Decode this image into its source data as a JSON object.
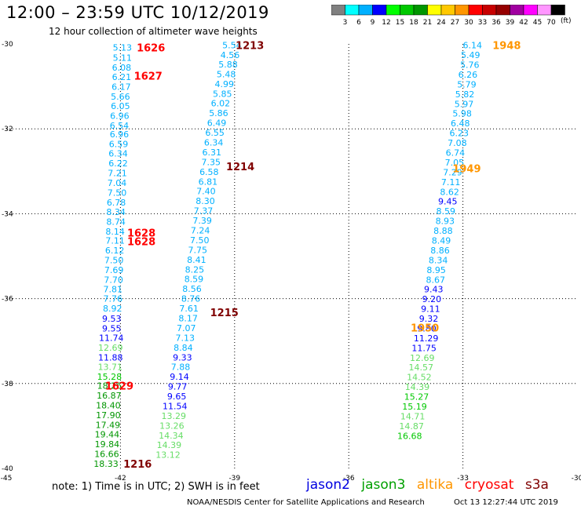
{
  "header": {
    "title": "12:00 – 23:59 UTC 10/12/2019",
    "subtitle": "12 hour collection of altimeter wave heights"
  },
  "legend": {
    "unit": "(ft)",
    "colors": [
      "#808080",
      "#00ffff",
      "#00b0ff",
      "#0000ff",
      "#00ff00",
      "#00c800",
      "#009600",
      "#ffff00",
      "#ffc800",
      "#ff9600",
      "#ff0000",
      "#c80000",
      "#960000",
      "#a000a0",
      "#ff00ff",
      "#ff96ff",
      "#000000"
    ],
    "labels": [
      "3",
      "6",
      "9",
      "12",
      "15",
      "18",
      "21",
      "24",
      "27",
      "30",
      "33",
      "36",
      "39",
      "42",
      "45",
      "70"
    ]
  },
  "note": "note: 1) Time is in UTC; 2) SWH is in feet",
  "satellites": [
    {
      "name": "jason2",
      "color": "#0000e0"
    },
    {
      "name": "jason3",
      "color": "#00a000"
    },
    {
      "name": "altika",
      "color": "#ff9600"
    },
    {
      "name": "cryosat",
      "color": "#ff0000"
    },
    {
      "name": "s3a",
      "color": "#800000"
    }
  ],
  "footer_left": "NOAA/NESDIS Center for Satellite Applications and Research",
  "footer_right": "Oct 13 12:27:44 UTC 2019",
  "chart_data": {
    "type": "scatter",
    "xlim": [
      -45,
      -30
    ],
    "ylim": [
      -40,
      -30
    ],
    "x_ticks": [
      "-45",
      "-42",
      "-39",
      "-36",
      "-33",
      "-30"
    ],
    "y_ticks": [
      "-30",
      "-32",
      "-34",
      "-36",
      "-38",
      "-40"
    ],
    "grid": "dotted",
    "series": [
      {
        "name": "cryosat",
        "color": "#ff0000",
        "time_labels": [
          {
            "text": "1626",
            "x": -41.2,
            "y": -30.08
          },
          {
            "text": "1627",
            "x": -41.27,
            "y": -30.75
          },
          {
            "text": "1628",
            "x": -41.45,
            "y": -34.45
          },
          {
            "text": "1628",
            "x": -41.45,
            "y": -34.65
          },
          {
            "text": "1629",
            "x": -42.03,
            "y": -38.05
          }
        ],
        "points": [
          {
            "x": -41.95,
            "y": -30.08,
            "v": "5.13",
            "c": "#00b0ff"
          },
          {
            "x": -41.95,
            "y": -30.32,
            "v": "5.11",
            "c": "#00b0ff"
          },
          {
            "x": -41.97,
            "y": -30.55,
            "v": "6.08",
            "c": "#00b0ff"
          },
          {
            "x": -41.97,
            "y": -30.78,
            "v": "6.21",
            "c": "#00b0ff"
          },
          {
            "x": -41.98,
            "y": -31.01,
            "v": "6.17",
            "c": "#00b0ff"
          },
          {
            "x": -42.0,
            "y": -31.24,
            "v": "5.66",
            "c": "#00b0ff"
          },
          {
            "x": -42.0,
            "y": -31.46,
            "v": "6.05",
            "c": "#00b0ff"
          },
          {
            "x": -42.02,
            "y": -31.69,
            "v": "6.96",
            "c": "#00b0ff"
          },
          {
            "x": -42.03,
            "y": -31.92,
            "v": "6.54",
            "c": "#00b0ff"
          },
          {
            "x": -42.03,
            "y": -32.13,
            "v": "6.96",
            "c": "#00b0ff"
          },
          {
            "x": -42.05,
            "y": -32.36,
            "v": "6.59",
            "c": "#00b0ff"
          },
          {
            "x": -42.06,
            "y": -32.58,
            "v": "6.34",
            "c": "#00b0ff"
          },
          {
            "x": -42.06,
            "y": -32.81,
            "v": "6.22",
            "c": "#00b0ff"
          },
          {
            "x": -42.08,
            "y": -33.04,
            "v": "7.21",
            "c": "#00b0ff"
          },
          {
            "x": -42.09,
            "y": -33.27,
            "v": "7.04",
            "c": "#00b0ff"
          },
          {
            "x": -42.09,
            "y": -33.5,
            "v": "7.50",
            "c": "#00b0ff"
          },
          {
            "x": -42.11,
            "y": -33.73,
            "v": "6.78",
            "c": "#00b0ff"
          },
          {
            "x": -42.12,
            "y": -33.96,
            "v": "8.34",
            "c": "#00b0ff"
          },
          {
            "x": -42.12,
            "y": -34.19,
            "v": "8.74",
            "c": "#00b0ff"
          },
          {
            "x": -42.14,
            "y": -34.42,
            "v": "8.14",
            "c": "#00b0ff"
          },
          {
            "x": -42.14,
            "y": -34.63,
            "v": "7.11",
            "c": "#00b0ff"
          },
          {
            "x": -42.15,
            "y": -34.86,
            "v": "6.12",
            "c": "#00b0ff"
          },
          {
            "x": -42.17,
            "y": -35.09,
            "v": "7.50",
            "c": "#00b0ff"
          },
          {
            "x": -42.17,
            "y": -35.32,
            "v": "7.69",
            "c": "#00b0ff"
          },
          {
            "x": -42.18,
            "y": -35.55,
            "v": "7.70",
            "c": "#00b0ff"
          },
          {
            "x": -42.2,
            "y": -35.78,
            "v": "7.81",
            "c": "#00b0ff"
          },
          {
            "x": -42.2,
            "y": -36.0,
            "v": "7.76",
            "c": "#00b0ff"
          },
          {
            "x": -42.21,
            "y": -36.23,
            "v": "8.92",
            "c": "#00b0ff"
          },
          {
            "x": -42.23,
            "y": -36.47,
            "v": "9.53",
            "c": "#0000ff"
          },
          {
            "x": -42.23,
            "y": -36.7,
            "v": "9.55",
            "c": "#0000ff"
          },
          {
            "x": -42.24,
            "y": -36.92,
            "v": "11.74",
            "c": "#0000ff"
          },
          {
            "x": -42.26,
            "y": -37.15,
            "v": "12.69",
            "c": "#66dd66"
          },
          {
            "x": -42.26,
            "y": -37.38,
            "v": "11.88",
            "c": "#0000ff"
          },
          {
            "x": -42.27,
            "y": -37.61,
            "v": "13.71",
            "c": "#66dd66"
          },
          {
            "x": -42.29,
            "y": -37.84,
            "v": "15.28",
            "c": "#00c800"
          },
          {
            "x": -42.29,
            "y": -38.05,
            "v": "18.26",
            "c": "#009600"
          },
          {
            "x": -42.3,
            "y": -38.28,
            "v": "16.87",
            "c": "#009600"
          },
          {
            "x": -42.32,
            "y": -38.51,
            "v": "18.40",
            "c": "#009600"
          },
          {
            "x": -42.32,
            "y": -38.74,
            "v": "17.90",
            "c": "#009600"
          },
          {
            "x": -42.33,
            "y": -38.97,
            "v": "17.49",
            "c": "#009600"
          },
          {
            "x": -42.35,
            "y": -39.2,
            "v": "19.44",
            "c": "#009600"
          },
          {
            "x": -42.35,
            "y": -39.43,
            "v": "19.84",
            "c": "#009600"
          },
          {
            "x": -42.36,
            "y": -39.66,
            "v": "16.66",
            "c": "#009600"
          },
          {
            "x": -42.38,
            "y": -39.89,
            "v": "18.33",
            "c": "#009600"
          }
        ]
      },
      {
        "name": "s3a",
        "color": "#800000",
        "time_labels": [
          {
            "text": "1213",
            "x": -38.6,
            "y": -30.03
          },
          {
            "text": "1214",
            "x": -38.85,
            "y": -32.88
          },
          {
            "text": "1215",
            "x": -39.27,
            "y": -36.32
          },
          {
            "text": "1216",
            "x": -41.55,
            "y": -39.89
          }
        ],
        "points": [
          {
            "x": -39.07,
            "y": -30.03,
            "v": "5.54",
            "c": "#00b0ff"
          },
          {
            "x": -39.12,
            "y": -30.26,
            "v": "4.56",
            "c": "#00b0ff"
          },
          {
            "x": -39.17,
            "y": -30.48,
            "v": "5.88",
            "c": "#00b0ff"
          },
          {
            "x": -39.22,
            "y": -30.71,
            "v": "5.48",
            "c": "#00b0ff"
          },
          {
            "x": -39.27,
            "y": -30.94,
            "v": "4.99",
            "c": "#00b0ff"
          },
          {
            "x": -39.32,
            "y": -31.17,
            "v": "5.85",
            "c": "#00b0ff"
          },
          {
            "x": -39.37,
            "y": -31.4,
            "v": "6.02",
            "c": "#00b0ff"
          },
          {
            "x": -39.42,
            "y": -31.63,
            "v": "5.86",
            "c": "#00b0ff"
          },
          {
            "x": -39.47,
            "y": -31.86,
            "v": "6.49",
            "c": "#00b0ff"
          },
          {
            "x": -39.52,
            "y": -32.09,
            "v": "6.55",
            "c": "#00b0ff"
          },
          {
            "x": -39.55,
            "y": -32.32,
            "v": "6.34",
            "c": "#00b0ff"
          },
          {
            "x": -39.6,
            "y": -32.55,
            "v": "6.31",
            "c": "#00b0ff"
          },
          {
            "x": -39.62,
            "y": -32.78,
            "v": "7.35",
            "c": "#00b0ff"
          },
          {
            "x": -39.67,
            "y": -33.01,
            "v": "6.58",
            "c": "#00b0ff"
          },
          {
            "x": -39.7,
            "y": -33.24,
            "v": "6.81",
            "c": "#00b0ff"
          },
          {
            "x": -39.75,
            "y": -33.47,
            "v": "7.40",
            "c": "#00b0ff"
          },
          {
            "x": -39.77,
            "y": -33.7,
            "v": "8.30",
            "c": "#00b0ff"
          },
          {
            "x": -39.82,
            "y": -33.93,
            "v": "7.37",
            "c": "#00b0ff"
          },
          {
            "x": -39.85,
            "y": -34.16,
            "v": "7.39",
            "c": "#00b0ff"
          },
          {
            "x": -39.9,
            "y": -34.39,
            "v": "7.24",
            "c": "#00b0ff"
          },
          {
            "x": -39.92,
            "y": -34.62,
            "v": "7.50",
            "c": "#00b0ff"
          },
          {
            "x": -39.97,
            "y": -34.85,
            "v": "7.75",
            "c": "#00b0ff"
          },
          {
            "x": -40.0,
            "y": -35.08,
            "v": "8.41",
            "c": "#00b0ff"
          },
          {
            "x": -40.05,
            "y": -35.31,
            "v": "8.25",
            "c": "#00b0ff"
          },
          {
            "x": -40.07,
            "y": -35.54,
            "v": "8.59",
            "c": "#00b0ff"
          },
          {
            "x": -40.12,
            "y": -35.77,
            "v": "8.56",
            "c": "#00b0ff"
          },
          {
            "x": -40.15,
            "y": -36.0,
            "v": "8.76",
            "c": "#00b0ff"
          },
          {
            "x": -40.2,
            "y": -36.23,
            "v": "7.61",
            "c": "#00b0ff"
          },
          {
            "x": -40.22,
            "y": -36.46,
            "v": "8.17",
            "c": "#00b0ff"
          },
          {
            "x": -40.27,
            "y": -36.69,
            "v": "7.07",
            "c": "#00b0ff"
          },
          {
            "x": -40.3,
            "y": -36.92,
            "v": "7.13",
            "c": "#00b0ff"
          },
          {
            "x": -40.35,
            "y": -37.15,
            "v": "8.84",
            "c": "#00b0ff"
          },
          {
            "x": -40.37,
            "y": -37.38,
            "v": "9.33",
            "c": "#0000ff"
          },
          {
            "x": -40.42,
            "y": -37.61,
            "v": "7.88",
            "c": "#00b0ff"
          },
          {
            "x": -40.45,
            "y": -37.84,
            "v": "9.14",
            "c": "#0000ff"
          },
          {
            "x": -40.5,
            "y": -38.07,
            "v": "9.77",
            "c": "#0000ff"
          },
          {
            "x": -40.52,
            "y": -38.3,
            "v": "9.65",
            "c": "#0000ff"
          },
          {
            "x": -40.57,
            "y": -38.53,
            "v": "11.54",
            "c": "#0000ff"
          },
          {
            "x": -40.6,
            "y": -38.76,
            "v": "13.29",
            "c": "#66dd66"
          },
          {
            "x": -40.65,
            "y": -38.99,
            "v": "13.26",
            "c": "#66dd66"
          },
          {
            "x": -40.67,
            "y": -39.22,
            "v": "14.34",
            "c": "#66dd66"
          },
          {
            "x": -40.72,
            "y": -39.45,
            "v": "14.39",
            "c": "#66dd66"
          },
          {
            "x": -40.75,
            "y": -39.68,
            "v": "13.12",
            "c": "#66dd66"
          }
        ]
      },
      {
        "name": "altika",
        "color": "#ff9600",
        "time_labels": [
          {
            "text": "1948",
            "x": -31.85,
            "y": -30.03
          },
          {
            "text": "1949",
            "x": -32.9,
            "y": -32.93
          },
          {
            "text": "1950",
            "x": -34.0,
            "y": -36.68
          }
        ],
        "points": [
          {
            "x": -32.75,
            "y": -30.03,
            "v": "6.14",
            "c": "#00b0ff"
          },
          {
            "x": -32.8,
            "y": -30.26,
            "v": "5.49",
            "c": "#00b0ff"
          },
          {
            "x": -32.82,
            "y": -30.49,
            "v": "5.76",
            "c": "#00b0ff"
          },
          {
            "x": -32.87,
            "y": -30.72,
            "v": "6.26",
            "c": "#00b0ff"
          },
          {
            "x": -32.9,
            "y": -30.95,
            "v": "5.79",
            "c": "#00b0ff"
          },
          {
            "x": -32.95,
            "y": -31.18,
            "v": "5.82",
            "c": "#00b0ff"
          },
          {
            "x": -32.97,
            "y": -31.41,
            "v": "5.97",
            "c": "#00b0ff"
          },
          {
            "x": -33.02,
            "y": -31.64,
            "v": "5.98",
            "c": "#00b0ff"
          },
          {
            "x": -33.07,
            "y": -31.87,
            "v": "6.48",
            "c": "#00b0ff"
          },
          {
            "x": -33.1,
            "y": -32.1,
            "v": "6.23",
            "c": "#00b0ff"
          },
          {
            "x": -33.15,
            "y": -32.33,
            "v": "7.08",
            "c": "#00b0ff"
          },
          {
            "x": -33.2,
            "y": -32.56,
            "v": "6.74",
            "c": "#00b0ff"
          },
          {
            "x": -33.22,
            "y": -32.79,
            "v": "7.05",
            "c": "#00b0ff"
          },
          {
            "x": -33.27,
            "y": -33.02,
            "v": "7.29",
            "c": "#00b0ff"
          },
          {
            "x": -33.32,
            "y": -33.25,
            "v": "7.11",
            "c": "#00b0ff"
          },
          {
            "x": -33.35,
            "y": -33.48,
            "v": "8.62",
            "c": "#00b0ff"
          },
          {
            "x": -33.4,
            "y": -33.71,
            "v": "9.45",
            "c": "#0000ff"
          },
          {
            "x": -33.45,
            "y": -33.94,
            "v": "8.59",
            "c": "#00b0ff"
          },
          {
            "x": -33.47,
            "y": -34.17,
            "v": "8.93",
            "c": "#00b0ff"
          },
          {
            "x": -33.52,
            "y": -34.4,
            "v": "8.88",
            "c": "#00b0ff"
          },
          {
            "x": -33.57,
            "y": -34.63,
            "v": "8.49",
            "c": "#00b0ff"
          },
          {
            "x": -33.6,
            "y": -34.86,
            "v": "8.86",
            "c": "#00b0ff"
          },
          {
            "x": -33.65,
            "y": -35.09,
            "v": "8.34",
            "c": "#00b0ff"
          },
          {
            "x": -33.7,
            "y": -35.32,
            "v": "8.95",
            "c": "#00b0ff"
          },
          {
            "x": -33.72,
            "y": -35.55,
            "v": "8.67",
            "c": "#00b0ff"
          },
          {
            "x": -33.77,
            "y": -35.78,
            "v": "9.43",
            "c": "#0000ff"
          },
          {
            "x": -33.82,
            "y": -36.01,
            "v": "9.20",
            "c": "#0000ff"
          },
          {
            "x": -33.85,
            "y": -36.24,
            "v": "9.11",
            "c": "#0000ff"
          },
          {
            "x": -33.9,
            "y": -36.47,
            "v": "9.32",
            "c": "#0000ff"
          },
          {
            "x": -33.95,
            "y": -36.7,
            "v": "9.80",
            "c": "#0000ff"
          },
          {
            "x": -33.97,
            "y": -36.93,
            "v": "11.29",
            "c": "#0000ff"
          },
          {
            "x": -34.02,
            "y": -37.16,
            "v": "11.75",
            "c": "#0000ff"
          },
          {
            "x": -34.07,
            "y": -37.39,
            "v": "12.69",
            "c": "#66dd66"
          },
          {
            "x": -34.1,
            "y": -37.62,
            "v": "14.57",
            "c": "#66dd66"
          },
          {
            "x": -34.15,
            "y": -37.85,
            "v": "14.52",
            "c": "#66dd66"
          },
          {
            "x": -34.2,
            "y": -38.08,
            "v": "14.39",
            "c": "#66dd66"
          },
          {
            "x": -34.22,
            "y": -38.31,
            "v": "15.27",
            "c": "#00c800"
          },
          {
            "x": -34.27,
            "y": -38.54,
            "v": "15.19",
            "c": "#00c800"
          },
          {
            "x": -34.32,
            "y": -38.77,
            "v": "14.71",
            "c": "#66dd66"
          },
          {
            "x": -34.35,
            "y": -39.0,
            "v": "14.87",
            "c": "#66dd66"
          },
          {
            "x": -34.4,
            "y": -39.23,
            "v": "16.68",
            "c": "#00c800"
          }
        ]
      }
    ]
  }
}
